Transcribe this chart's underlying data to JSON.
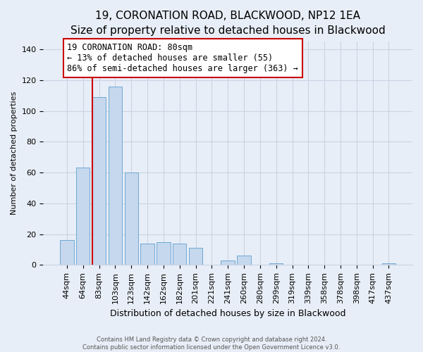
{
  "title": "19, CORONATION ROAD, BLACKWOOD, NP12 1EA",
  "subtitle": "Size of property relative to detached houses in Blackwood",
  "xlabel": "Distribution of detached houses by size in Blackwood",
  "ylabel": "Number of detached properties",
  "bar_labels": [
    "44sqm",
    "64sqm",
    "83sqm",
    "103sqm",
    "123sqm",
    "142sqm",
    "162sqm",
    "182sqm",
    "201sqm",
    "221sqm",
    "241sqm",
    "260sqm",
    "280sqm",
    "299sqm",
    "319sqm",
    "339sqm",
    "358sqm",
    "378sqm",
    "398sqm",
    "417sqm",
    "437sqm"
  ],
  "bar_values": [
    16,
    63,
    109,
    116,
    60,
    14,
    15,
    14,
    11,
    0,
    3,
    6,
    0,
    1,
    0,
    0,
    0,
    0,
    0,
    0,
    1
  ],
  "bar_color": "#c5d8ed",
  "bar_edge_color": "#6fa8d4",
  "property_line_color": "#cc0000",
  "annotation_line1": "19 CORONATION ROAD: 80sqm",
  "annotation_line2": "← 13% of detached houses are smaller (55)",
  "annotation_line3": "86% of semi-detached houses are larger (363) →",
  "annotation_box_facecolor": "#ffffff",
  "annotation_box_edgecolor": "#cc0000",
  "ylim": [
    0,
    145
  ],
  "yticks": [
    0,
    20,
    40,
    60,
    80,
    100,
    120,
    140
  ],
  "footer1": "Contains HM Land Registry data © Crown copyright and database right 2024.",
  "footer2": "Contains public sector information licensed under the Open Government Licence v3.0.",
  "bg_color": "#e8eef7",
  "plot_bg_color": "#e8eef7",
  "grid_color": "#c8d4e4",
  "title_fontsize": 11,
  "subtitle_fontsize": 9,
  "xlabel_fontsize": 9,
  "ylabel_fontsize": 8,
  "tick_fontsize": 8
}
